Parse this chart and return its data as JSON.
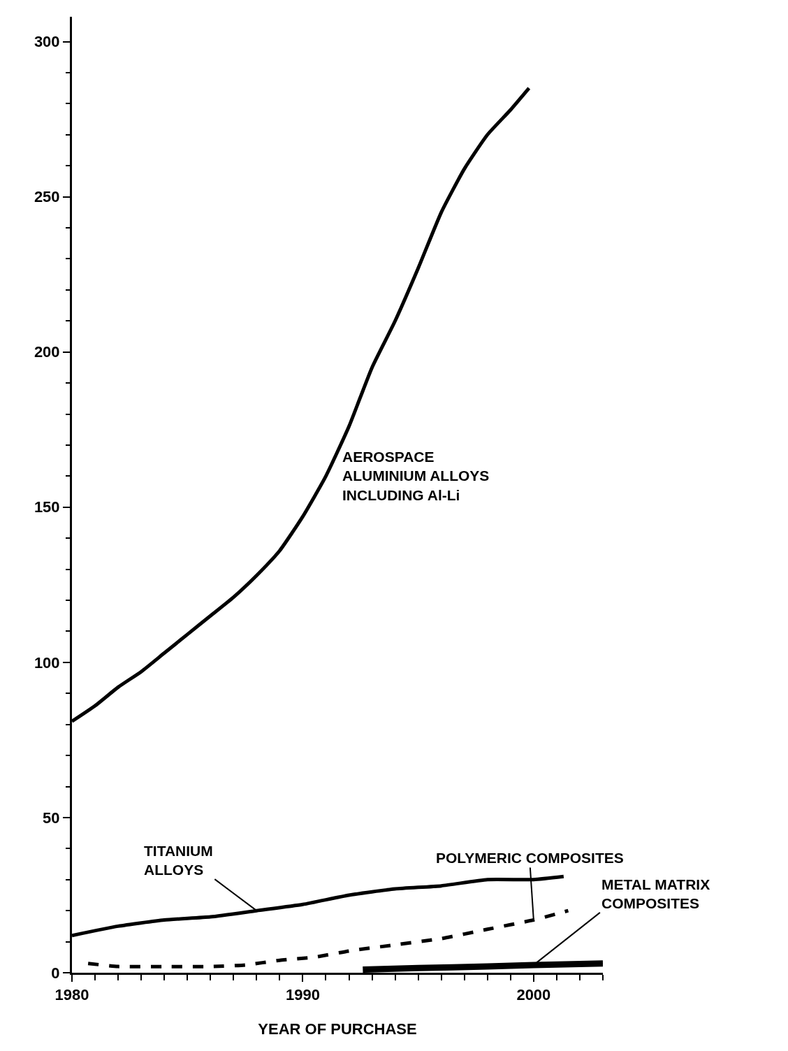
{
  "chart_data": {
    "type": "line",
    "xlabel": "YEAR OF PURCHASE",
    "xlim": [
      1980,
      2003
    ],
    "xticks": [
      1980,
      1990,
      2000
    ],
    "ylim": [
      0,
      308
    ],
    "yticks": [
      0,
      50,
      100,
      150,
      200,
      250,
      300
    ],
    "legend": false,
    "marker": "none",
    "series": [
      {
        "name": "AEROSPACE ALUMINIUM ALLOYS INCLUDING Al-Li",
        "color": "#000000",
        "line_style": "solid",
        "x": [
          1980,
          1981,
          1982,
          1983,
          1984,
          1985,
          1986,
          1987,
          1988,
          1989,
          1990,
          1991,
          1992,
          1993,
          1994,
          1995,
          1996,
          1997,
          1998,
          1999,
          1999.8
        ],
        "values": [
          81,
          86,
          92,
          97,
          103,
          109,
          115,
          121,
          128,
          136,
          147,
          160,
          176,
          195,
          210,
          227,
          245,
          259,
          270,
          278,
          285
        ]
      },
      {
        "name": "TITANIUM ALLOYS",
        "color": "#000000",
        "line_style": "solid",
        "x": [
          1980,
          1982,
          1984,
          1986,
          1988,
          1990,
          1992,
          1994,
          1996,
          1998,
          2000,
          2001.3
        ],
        "values": [
          12,
          15,
          17,
          18,
          20,
          22,
          25,
          27,
          28,
          30,
          30,
          31
        ]
      },
      {
        "name": "POLYMERIC COMPOSITES",
        "color": "#000000",
        "line_style": "dashed",
        "x": [
          1980.7,
          1982,
          1984,
          1986,
          1987.5,
          1989,
          1990.5,
          1992,
          1994,
          1996,
          1998,
          2000,
          2001.5
        ],
        "values": [
          3,
          2,
          2,
          2,
          2.5,
          4,
          5,
          7,
          9,
          11,
          14,
          17,
          20
        ]
      },
      {
        "name": "METAL MATRIX COMPOSITES",
        "color": "#000000",
        "line_style": "solid",
        "x": [
          1992.6,
          1995,
          1998,
          2000,
          2003
        ],
        "values": [
          1,
          1.5,
          2,
          2.5,
          3
        ]
      }
    ]
  }
}
